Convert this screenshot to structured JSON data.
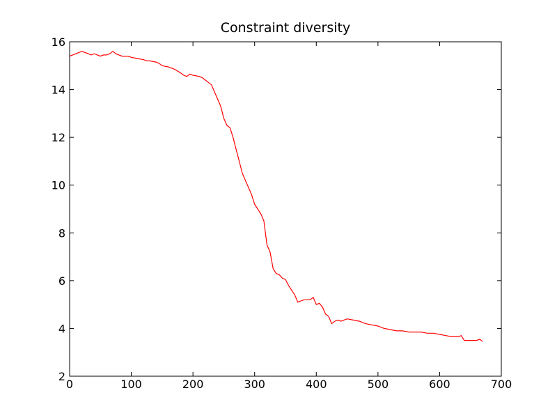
{
  "chart_data": {
    "type": "line",
    "title": "Constraint diversity",
    "xlabel": "",
    "ylabel": "",
    "xlim": [
      0,
      700
    ],
    "ylim": [
      2,
      16
    ],
    "xticks": [
      0,
      100,
      200,
      300,
      400,
      500,
      600,
      700
    ],
    "yticks": [
      2,
      4,
      6,
      8,
      10,
      12,
      14,
      16
    ],
    "grid": false,
    "series": [
      {
        "color": "#ff0000",
        "x": [
          0,
          5,
          10,
          15,
          20,
          25,
          30,
          35,
          40,
          45,
          50,
          55,
          60,
          65,
          70,
          75,
          80,
          85,
          90,
          95,
          100,
          110,
          120,
          125,
          130,
          140,
          145,
          150,
          160,
          170,
          180,
          185,
          190,
          195,
          200,
          210,
          215,
          220,
          225,
          230,
          235,
          240,
          245,
          250,
          255,
          260,
          265,
          270,
          275,
          280,
          285,
          290,
          295,
          300,
          305,
          310,
          315,
          320,
          325,
          330,
          335,
          340,
          345,
          350,
          355,
          360,
          365,
          370,
          375,
          380,
          385,
          390,
          395,
          400,
          405,
          410,
          415,
          420,
          425,
          430,
          435,
          440,
          450,
          460,
          470,
          480,
          490,
          500,
          510,
          520,
          530,
          540,
          550,
          560,
          570,
          580,
          590,
          600,
          610,
          620,
          630,
          635,
          640,
          650,
          660,
          665,
          670
        ],
        "y": [
          15.4,
          15.45,
          15.5,
          15.55,
          15.6,
          15.55,
          15.5,
          15.45,
          15.5,
          15.45,
          15.4,
          15.45,
          15.45,
          15.5,
          15.6,
          15.5,
          15.45,
          15.4,
          15.4,
          15.4,
          15.35,
          15.3,
          15.25,
          15.2,
          15.2,
          15.15,
          15.1,
          15.0,
          14.95,
          14.85,
          14.7,
          14.6,
          14.55,
          14.65,
          14.6,
          14.55,
          14.5,
          14.4,
          14.3,
          14.2,
          13.9,
          13.6,
          13.3,
          12.8,
          12.5,
          12.4,
          12.0,
          11.5,
          11.0,
          10.5,
          10.2,
          9.9,
          9.6,
          9.2,
          9.0,
          8.8,
          8.5,
          7.5,
          7.2,
          6.5,
          6.3,
          6.25,
          6.1,
          6.05,
          5.8,
          5.6,
          5.4,
          5.1,
          5.15,
          5.2,
          5.2,
          5.2,
          5.3,
          5.0,
          5.05,
          4.9,
          4.6,
          4.5,
          4.2,
          4.3,
          4.35,
          4.3,
          4.4,
          4.35,
          4.3,
          4.2,
          4.15,
          4.1,
          4.0,
          3.95,
          3.9,
          3.9,
          3.85,
          3.85,
          3.85,
          3.8,
          3.8,
          3.75,
          3.7,
          3.65,
          3.65,
          3.7,
          3.5,
          3.5,
          3.5,
          3.55,
          3.45
        ]
      }
    ]
  }
}
